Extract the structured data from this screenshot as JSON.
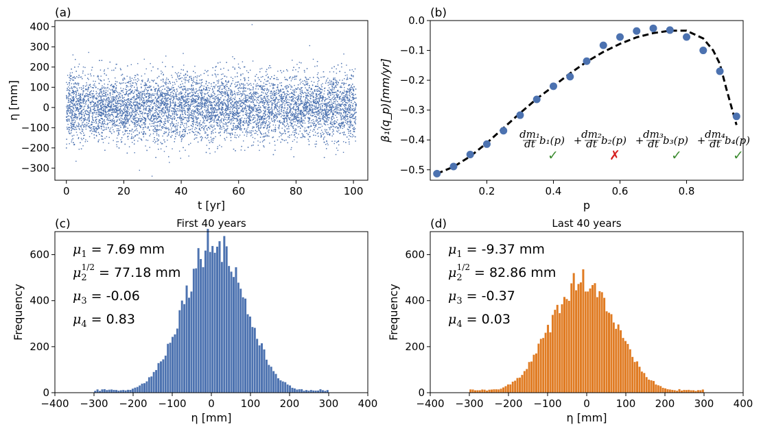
{
  "chart_data": [
    {
      "id": "a",
      "panel_label": "(a)",
      "type": "scatter",
      "title": "",
      "xlabel": "t [yr]",
      "ylabel": "η [mm]",
      "xlim": [
        -4,
        105
      ],
      "ylim": [
        -360,
        430
      ],
      "xticks": [
        0,
        20,
        40,
        60,
        80,
        100
      ],
      "yticks": [
        -300,
        -200,
        -100,
        0,
        100,
        200,
        300,
        400
      ],
      "n_points": 9000,
      "t_range": [
        0,
        101
      ],
      "eta_mean": 0,
      "eta_std": 80,
      "color": "#4c72b0"
    },
    {
      "id": "b",
      "panel_label": "(b)",
      "type": "line",
      "xlabel": "p",
      "ylabel": "β₁(q_p)[mm/yr]",
      "xlim": [
        0.03,
        0.97
      ],
      "ylim": [
        -0.535,
        0.0
      ],
      "xticks": [
        0.2,
        0.4,
        0.6,
        0.8
      ],
      "yticks": [
        -0.5,
        -0.4,
        -0.3,
        -0.2,
        -0.1,
        0.0
      ],
      "ytick_labels": [
        "−0.5",
        "−0.4",
        "−0.3",
        "−0.2",
        "−0.1",
        "0.0"
      ],
      "series": [
        {
          "name": "estimates",
          "kind": "scatter",
          "color": "#4c72b0",
          "x": [
            0.05,
            0.1,
            0.15,
            0.2,
            0.25,
            0.3,
            0.35,
            0.4,
            0.45,
            0.5,
            0.55,
            0.6,
            0.65,
            0.7,
            0.75,
            0.8,
            0.85,
            0.9,
            0.95
          ],
          "y": [
            -0.513,
            -0.489,
            -0.449,
            -0.414,
            -0.369,
            -0.317,
            -0.264,
            -0.22,
            -0.188,
            -0.136,
            -0.083,
            -0.055,
            -0.035,
            -0.026,
            -0.032,
            -0.055,
            -0.1,
            -0.17,
            -0.321
          ]
        },
        {
          "name": "fit",
          "kind": "dashed-line",
          "color": "#000000",
          "x": [
            0.05,
            0.1,
            0.15,
            0.2,
            0.25,
            0.3,
            0.35,
            0.4,
            0.45,
            0.5,
            0.55,
            0.6,
            0.65,
            0.7,
            0.75,
            0.8,
            0.85,
            0.88,
            0.9,
            0.92,
            0.95
          ],
          "y": [
            -0.513,
            -0.49,
            -0.455,
            -0.41,
            -0.36,
            -0.31,
            -0.262,
            -0.22,
            -0.177,
            -0.138,
            -0.105,
            -0.078,
            -0.056,
            -0.042,
            -0.034,
            -0.034,
            -0.06,
            -0.1,
            -0.145,
            -0.23,
            -0.35
          ]
        }
      ],
      "annotation": {
        "terms": [
          {
            "coef": "dm₁",
            "basis": "b₁(p)",
            "mark": "✓",
            "mark_color": "#3a8a2e"
          },
          {
            "coef": "dm₂",
            "basis": "b₂(p)",
            "mark": "✗",
            "mark_color": "#d62020"
          },
          {
            "coef": "dm₃",
            "basis": "b₃(p)",
            "mark": "✓",
            "mark_color": "#3a8a2e"
          },
          {
            "coef": "dm₄",
            "basis": "b₄(p)",
            "mark": "✓",
            "mark_color": "#3a8a2e"
          }
        ],
        "dt": "dt",
        "plus": "+"
      }
    },
    {
      "id": "c",
      "panel_label": "(c)",
      "type": "bar",
      "title": "First 40 years",
      "xlabel": "η [mm]",
      "ylabel": "Frequency",
      "xlim": [
        -400,
        400
      ],
      "ylim": [
        0,
        700
      ],
      "xticks": [
        -400,
        -300,
        -200,
        -100,
        0,
        100,
        200,
        300,
        400
      ],
      "xtick_labels": [
        "−400",
        "−300",
        "−200",
        "−100",
        "0",
        "100",
        "200",
        "300",
        "400"
      ],
      "yticks": [
        0,
        200,
        400,
        600
      ],
      "color": "#4c72b0",
      "bin_width": 6,
      "bin_start": -300,
      "mean": 7.69,
      "std": 77.18,
      "peak": 665,
      "stats": {
        "mu1": {
          "sym": "μ",
          "sub": "1",
          "val": " = 7.69 mm"
        },
        "mu2": {
          "sym": "μ",
          "sub": "2",
          "sup": "1/2",
          "val": " = 77.18 mm"
        },
        "mu3": {
          "sym": "μ",
          "sub": "3",
          "val": " = -0.06"
        },
        "mu4": {
          "sym": "μ",
          "sub": "4",
          "val": " = 0.83"
        }
      }
    },
    {
      "id": "d",
      "panel_label": "(d)",
      "type": "bar",
      "title": "Last 40 years",
      "xlabel": "η [mm]",
      "ylabel": "Frequency",
      "xlim": [
        -400,
        400
      ],
      "ylim": [
        0,
        700
      ],
      "xticks": [
        -400,
        -300,
        -200,
        -100,
        0,
        100,
        200,
        300,
        400
      ],
      "xtick_labels": [
        "−400",
        "−300",
        "−200",
        "−100",
        "0",
        "100",
        "200",
        "300",
        "400"
      ],
      "yticks": [
        0,
        200,
        400,
        600
      ],
      "color": "#e07b22",
      "bin_width": 6,
      "bin_start": -300,
      "mean": -9.37,
      "std": 82.86,
      "peak": 495,
      "stats": {
        "mu1": {
          "sym": "μ",
          "sub": "1",
          "val": " = -9.37 mm"
        },
        "mu2": {
          "sym": "μ",
          "sub": "2",
          "sup": "1/2",
          "val": " = 82.86 mm"
        },
        "mu3": {
          "sym": "μ",
          "sub": "3",
          "val": " = -0.37"
        },
        "mu4": {
          "sym": "μ",
          "sub": "4",
          "val": " = 0.03"
        }
      }
    }
  ]
}
